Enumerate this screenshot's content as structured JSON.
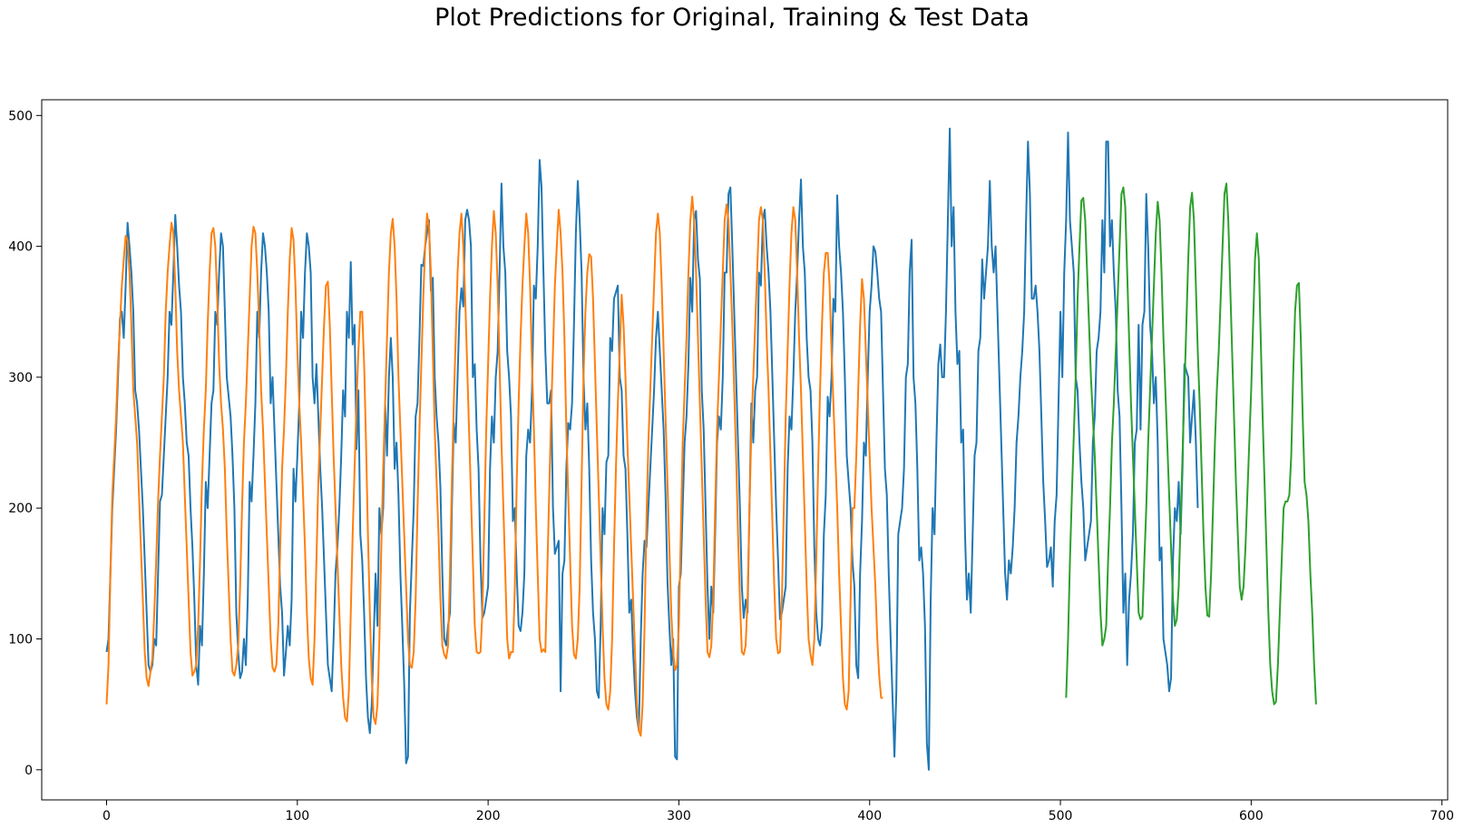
{
  "chart_data": {
    "type": "line",
    "title": "Plot Predictions for Original, Training & Test Data",
    "xlabel": "",
    "ylabel": "",
    "xlim": [
      -34,
      703
    ],
    "ylim": [
      -23,
      512
    ],
    "xticks": [
      0,
      100,
      200,
      300,
      400,
      500,
      600,
      700
    ],
    "yticks": [
      0,
      100,
      200,
      300,
      400,
      500
    ],
    "grid": false,
    "legend": false,
    "colors": [
      "#1f77b4",
      "#ff7f0e",
      "#2ca02c"
    ],
    "series": [
      {
        "x_start": 0,
        "x_step": 1,
        "values": [
          90,
          100,
          150,
          200,
          230,
          260,
          300,
          345,
          350,
          330,
          370,
          418,
          400,
          380,
          350,
          290,
          280,
          260,
          230,
          200,
          160,
          120,
          80,
          75,
          80,
          100,
          95,
          150,
          205,
          210,
          240,
          270,
          300,
          350,
          340,
          380,
          424,
          400,
          370,
          350,
          300,
          280,
          250,
          240,
          200,
          170,
          130,
          80,
          65,
          110,
          95,
          150,
          220,
          200,
          240,
          280,
          290,
          350,
          340,
          380,
          410,
          400,
          350,
          300,
          285,
          270,
          240,
          200,
          120,
          90,
          70,
          75,
          100,
          80,
          130,
          220,
          205,
          240,
          280,
          350,
          330,
          380,
          410,
          400,
          380,
          350,
          280,
          300,
          260,
          220,
          180,
          140,
          120,
          72,
          90,
          110,
          95,
          130,
          230,
          205,
          240,
          280,
          350,
          330,
          380,
          410,
          400,
          380,
          300,
          280,
          310,
          270,
          230,
          200,
          160,
          120,
          80,
          70,
          60,
          100,
          150,
          170,
          200,
          240,
          290,
          270,
          350,
          330,
          388,
          325,
          340,
          245,
          290,
          180,
          160,
          120,
          70,
          40,
          28,
          50,
          100,
          150,
          110,
          200,
          180,
          200,
          280,
          240,
          300,
          330,
          300,
          230,
          250,
          210,
          150,
          110,
          66,
          5,
          10,
          120,
          160,
          200,
          270,
          280,
          330,
          386,
          385,
          400,
          410,
          420,
          366,
          376,
          300,
          270,
          250,
          215,
          150,
          100,
          95,
          110,
          120,
          200,
          265,
          250,
          300,
          350,
          368,
          354,
          420,
          428,
          420,
          400,
          300,
          310,
          260,
          230,
          160,
          116,
          120,
          130,
          140,
          230,
          270,
          250,
          300,
          320,
          380,
          448,
          400,
          380,
          320,
          300,
          270,
          190,
          200,
          150,
          110,
          106,
          120,
          150,
          240,
          260,
          250,
          290,
          370,
          360,
          400,
          466,
          445,
          380,
          320,
          280,
          280,
          290,
          200,
          165,
          170,
          175,
          60,
          150,
          160,
          230,
          265,
          260,
          280,
          340,
          410,
          450,
          420,
          380,
          300,
          260,
          280,
          230,
          160,
          120,
          100,
          60,
          55,
          110,
          200,
          180,
          235,
          240,
          330,
          320,
          360,
          365,
          370,
          300,
          290,
          240,
          230,
          180,
          120,
          130,
          90,
          60,
          40,
          30,
          100,
          150,
          175,
          170,
          200,
          230,
          260,
          290,
          330,
          350,
          320,
          290,
          260,
          210,
          145,
          110,
          80,
          100,
          10,
          8,
          140,
          150,
          200,
          250,
          270,
          310,
          376,
          350,
          420,
          427,
          390,
          375,
          290,
          260,
          200,
          140,
          100,
          140,
          120,
          180,
          250,
          270,
          260,
          300,
          380,
          380,
          440,
          445,
          400,
          350,
          300,
          250,
          200,
          140,
          116,
          130,
          120,
          200,
          280,
          250,
          290,
          300,
          380,
          370,
          420,
          428,
          400,
          380,
          350,
          300,
          250,
          200,
          160,
          115,
          120,
          130,
          140,
          230,
          270,
          260,
          300,
          350,
          380,
          420,
          451,
          400,
          380,
          330,
          300,
          290,
          250,
          170,
          120,
          100,
          95,
          110,
          180,
          210,
          285,
          270,
          300,
          360,
          350,
          439,
          400,
          380,
          350,
          300,
          240,
          220,
          200,
          160,
          140,
          80,
          70,
          150,
          190,
          250,
          240,
          300,
          350,
          370,
          400,
          396,
          380,
          360,
          350,
          290,
          230,
          210,
          150,
          100,
          55,
          10,
          60,
          180,
          190,
          200,
          230,
          300,
          310,
          380,
          405,
          300,
          280,
          230,
          160,
          170,
          150,
          110,
          20,
          0,
          130,
          200,
          180,
          250,
          310,
          325,
          300,
          300,
          350,
          420,
          490,
          400,
          430,
          350,
          310,
          320,
          250,
          260,
          180,
          130,
          150,
          120,
          180,
          240,
          250,
          320,
          330,
          390,
          360,
          380,
          400,
          450,
          400,
          380,
          400,
          350,
          300,
          250,
          200,
          150,
          130,
          160,
          150,
          170,
          200,
          250,
          270,
          300,
          320,
          350,
          420,
          480,
          440,
          360,
          360,
          370,
          350,
          320,
          270,
          220,
          190,
          155,
          160,
          170,
          140,
          190,
          210,
          280,
          350,
          300,
          380,
          420,
          487,
          420,
          400,
          380,
          300,
          290,
          250,
          220,
          200,
          160,
          170,
          180,
          190,
          250,
          270,
          320,
          330,
          350,
          420,
          380,
          480,
          480,
          400,
          420,
          380,
          350,
          290,
          270,
          200,
          120,
          150,
          80,
          130,
          150,
          180,
          250,
          260,
          340,
          260,
          340,
          350,
          440,
          400,
          340,
          320,
          280,
          300,
          250,
          160,
          170,
          100,
          90,
          80,
          60,
          70,
          160,
          200,
          190,
          220,
          180,
          230,
          310,
          305,
          300,
          250,
          270,
          290,
          250,
          200
        ],
        "note_values": "approximate readings"
      },
      {
        "x_start": 0,
        "x_step": 1,
        "values": [
          50,
          80,
          150,
          210,
          240,
          270,
          310,
          340,
          370,
          390,
          408,
          405,
          380,
          340,
          290,
          270,
          250,
          210,
          170,
          130,
          90,
          70,
          64,
          75,
          85,
          120,
          160,
          205,
          240,
          270,
          300,
          350,
          380,
          400,
          418,
          410,
          370,
          320,
          290,
          270,
          250,
          210,
          170,
          130,
          90,
          72,
          75,
          80,
          110,
          160,
          220,
          260,
          290,
          340,
          380,
          410,
          414,
          400,
          360,
          310,
          280,
          260,
          230,
          180,
          140,
          100,
          75,
          72,
          80,
          95,
          140,
          200,
          250,
          280,
          320,
          360,
          400,
          415,
          410,
          380,
          340,
          290,
          260,
          220,
          180,
          140,
          100,
          78,
          75,
          80,
          110,
          170,
          230,
          260,
          300,
          350,
          390,
          414,
          405,
          370,
          320,
          280,
          250,
          210,
          170,
          120,
          85,
          70,
          65,
          100,
          160,
          220,
          260,
          300,
          340,
          370,
          373,
          340,
          290,
          240,
          200,
          160,
          120,
          80,
          55,
          40,
          37,
          60,
          120,
          180,
          230,
          280,
          320,
          350,
          350,
          310,
          250,
          180,
          120,
          70,
          40,
          35,
          50,
          100,
          170,
          230,
          280,
          330,
          380,
          410,
          421,
          400,
          360,
          300,
          260,
          220,
          180,
          140,
          100,
          80,
          78,
          90,
          130,
          200,
          260,
          310,
          360,
          400,
          425,
          415,
          380,
          320,
          260,
          220,
          180,
          130,
          95,
          88,
          85,
          95,
          150,
          220,
          280,
          330,
          380,
          410,
          425,
          400,
          360,
          310,
          260,
          210,
          160,
          110,
          90,
          89,
          90,
          120,
          190,
          260,
          310,
          360,
          400,
          427,
          410,
          370,
          310,
          250,
          200,
          150,
          100,
          85,
          90,
          90,
          140,
          220,
          280,
          330,
          370,
          400,
          425,
          410,
          370,
          310,
          260,
          200,
          150,
          100,
          90,
          92,
          90,
          150,
          210,
          270,
          320,
          370,
          400,
          428,
          410,
          380,
          330,
          260,
          210,
          160,
          110,
          88,
          85,
          100,
          140,
          220,
          300,
          350,
          380,
          394,
          392,
          360,
          310,
          260,
          210,
          160,
          110,
          70,
          50,
          46,
          60,
          100,
          170,
          230,
          280,
          320,
          363,
          340,
          300,
          250,
          210,
          170,
          130,
          90,
          50,
          30,
          26,
          50,
          110,
          190,
          250,
          290,
          330,
          370,
          410,
          425,
          410,
          370,
          320,
          270,
          220,
          170,
          120,
          90,
          76,
          80,
          110,
          180,
          250,
          290,
          330,
          380,
          420,
          438,
          420,
          380,
          330,
          280,
          230,
          180,
          130,
          90,
          86,
          95,
          130,
          200,
          260,
          300,
          340,
          380,
          420,
          432,
          420,
          380,
          340,
          290,
          240,
          180,
          130,
          90,
          88,
          95,
          130,
          200,
          260,
          300,
          340,
          380,
          420,
          430,
          420,
          380,
          330,
          290,
          240,
          190,
          140,
          100,
          89,
          90,
          130,
          200,
          270,
          320,
          370,
          410,
          430,
          420,
          380,
          330,
          290,
          240,
          190,
          140,
          100,
          88,
          80,
          100,
          160,
          230,
          290,
          340,
          380,
          395,
          395,
          370,
          320,
          280,
          240,
          200,
          150,
          110,
          70,
          50,
          46,
          60,
          130,
          200,
          200,
          240,
          290,
          340,
          375,
          360,
          320,
          280,
          240,
          200,
          170,
          140,
          100,
          72,
          55,
          55
        ],
        "note_values": "approximate readings"
      },
      {
        "x_start": 503,
        "x_step": 1,
        "values": [
          55,
          100,
          160,
          210,
          255,
          300,
          360,
          400,
          435,
          437,
          420,
          380,
          340,
          300,
          270,
          240,
          200,
          160,
          120,
          95,
          100,
          110,
          160,
          200,
          250,
          280,
          320,
          360,
          400,
          440,
          445,
          430,
          380,
          330,
          280,
          240,
          200,
          160,
          120,
          115,
          117,
          160,
          200,
          250,
          290,
          330,
          370,
          410,
          434,
          420,
          380,
          330,
          290,
          250,
          210,
          170,
          130,
          110,
          115,
          140,
          190,
          240,
          290,
          340,
          390,
          430,
          441,
          420,
          370,
          320,
          280,
          230,
          180,
          140,
          118,
          117,
          150,
          200,
          250,
          290,
          320,
          360,
          400,
          440,
          448,
          420,
          370,
          320,
          270,
          220,
          180,
          140,
          130,
          140,
          170,
          210,
          250,
          290,
          340,
          390,
          410,
          390,
          330,
          270,
          220,
          170,
          120,
          80,
          60,
          50,
          52,
          80,
          120,
          160,
          200,
          205,
          205,
          210,
          240,
          300,
          350,
          370,
          372,
          330,
          270,
          220,
          210,
          190,
          150,
          120,
          80,
          50
        ]
      }
    ]
  }
}
